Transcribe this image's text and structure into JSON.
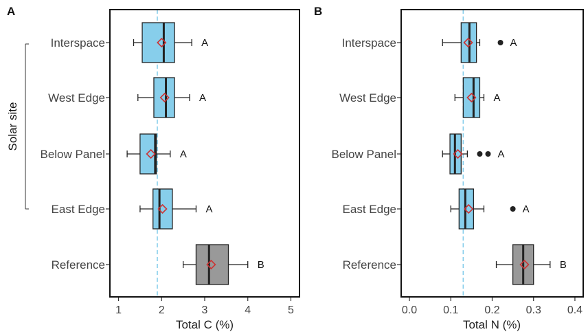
{
  "figure": {
    "group_label": "Solar site"
  },
  "chart_data": [
    {
      "type": "boxplot",
      "orientation": "horizontal",
      "panel_label": "A",
      "xlabel": "Total C (%)",
      "xlim": [
        0.8,
        5.2
      ],
      "xticks": [
        "1",
        "2",
        "3",
        "4",
        "5"
      ],
      "reference_line": 1.9,
      "grid": false,
      "series": [
        {
          "name": "Interspace",
          "whisker_low": 1.35,
          "q1": 1.55,
          "median": 2.05,
          "q3": 2.3,
          "whisker_high": 2.7,
          "mean": 2.0,
          "outliers": [],
          "letter": "A",
          "color": "#87ceeb"
        },
        {
          "name": "West Edge",
          "whisker_low": 1.45,
          "q1": 1.82,
          "median": 2.1,
          "q3": 2.3,
          "whisker_high": 2.65,
          "mean": 2.07,
          "outliers": [],
          "letter": "A",
          "color": "#87ceeb"
        },
        {
          "name": "Below Panel",
          "whisker_low": 1.2,
          "q1": 1.5,
          "median": 1.85,
          "q3": 1.88,
          "whisker_high": 2.2,
          "mean": 1.75,
          "outliers": [],
          "letter": "A",
          "color": "#87ceeb"
        },
        {
          "name": "East Edge",
          "whisker_low": 1.5,
          "q1": 1.8,
          "median": 1.95,
          "q3": 2.25,
          "whisker_high": 2.8,
          "mean": 2.02,
          "outliers": [],
          "letter": "A",
          "color": "#87ceeb"
        },
        {
          "name": "Reference",
          "whisker_low": 2.5,
          "q1": 2.8,
          "median": 3.1,
          "q3": 3.55,
          "whisker_high": 4.0,
          "mean": 3.15,
          "outliers": [],
          "letter": "B",
          "color": "#999999"
        }
      ]
    },
    {
      "type": "boxplot",
      "orientation": "horizontal",
      "panel_label": "B",
      "xlabel": "Total N (%)",
      "xlim": [
        -0.02,
        0.42
      ],
      "xticks": [
        "0.0",
        "0.1",
        "0.2",
        "0.3",
        "0.4"
      ],
      "reference_line": 0.13,
      "grid": false,
      "series": [
        {
          "name": "Interspace",
          "whisker_low": 0.08,
          "q1": 0.125,
          "median": 0.145,
          "q3": 0.162,
          "whisker_high": 0.17,
          "mean": 0.142,
          "outliers": [
            0.22
          ],
          "letter": "A",
          "color": "#87ceeb"
        },
        {
          "name": "West Edge",
          "whisker_low": 0.11,
          "q1": 0.13,
          "median": 0.155,
          "q3": 0.17,
          "whisker_high": 0.18,
          "mean": 0.15,
          "outliers": [],
          "letter": "A",
          "color": "#87ceeb"
        },
        {
          "name": "Below Panel",
          "whisker_low": 0.08,
          "q1": 0.098,
          "median": 0.11,
          "q3": 0.125,
          "whisker_high": 0.14,
          "mean": 0.117,
          "outliers": [
            0.17,
            0.19
          ],
          "letter": "A",
          "color": "#87ceeb"
        },
        {
          "name": "East Edge",
          "whisker_low": 0.1,
          "q1": 0.12,
          "median": 0.135,
          "q3": 0.155,
          "whisker_high": 0.18,
          "mean": 0.143,
          "outliers": [
            0.25
          ],
          "letter": "A",
          "color": "#87ceeb"
        },
        {
          "name": "Reference",
          "whisker_low": 0.21,
          "q1": 0.25,
          "median": 0.275,
          "q3": 0.3,
          "whisker_high": 0.34,
          "mean": 0.278,
          "outliers": [],
          "letter": "B",
          "color": "#999999"
        }
      ]
    }
  ],
  "colors": {
    "solar_box": "#87ceeb",
    "reference_box": "#999999",
    "mean_marker": "#cc3333",
    "reference_line": "#87ceeb",
    "median": "#222222"
  }
}
